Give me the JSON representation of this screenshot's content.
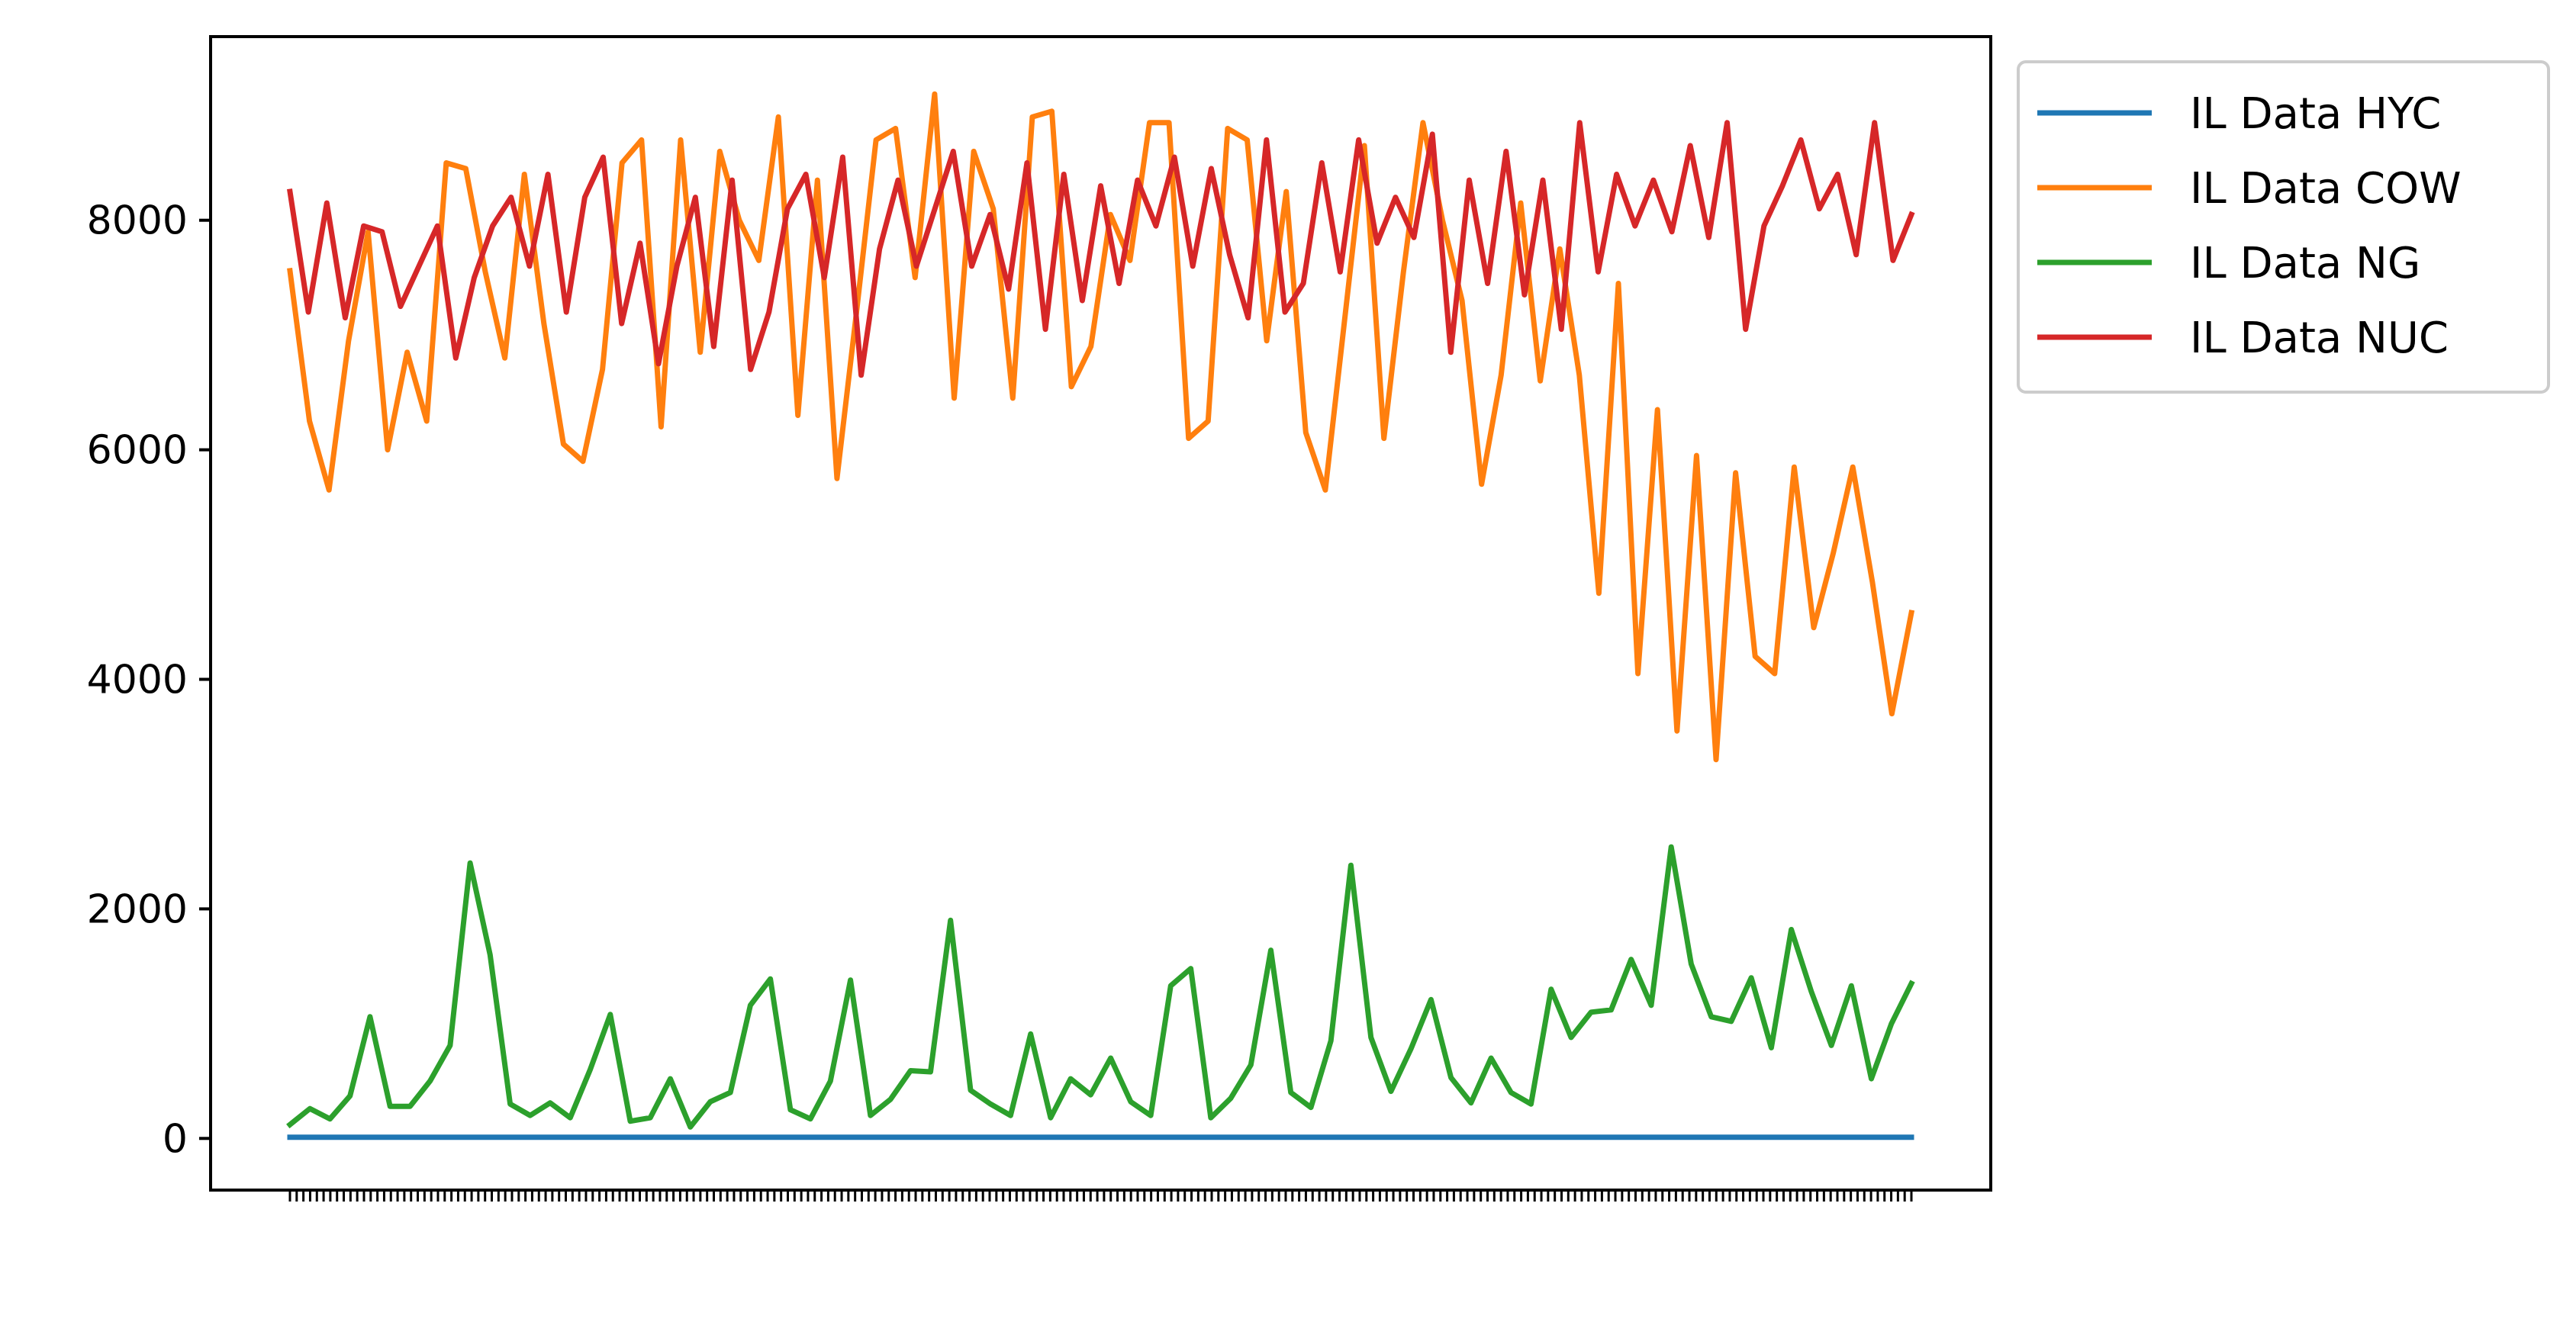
{
  "chart_data": {
    "type": "line",
    "title": "",
    "xlabel": "",
    "ylabel": "",
    "ylim": [
      -450,
      9600
    ],
    "yticks": [
      0,
      2000,
      4000,
      6000,
      8000
    ],
    "grid": false,
    "legend_placement": "outside-top-right",
    "x_tick_labels_overlapping": true,
    "x_count": 242,
    "series": [
      {
        "name": "IL Data HYC",
        "color": "#1f77b4",
        "values": [
          10,
          10,
          10,
          10,
          10,
          10
        ]
      },
      {
        "name": "IL Data COW",
        "color": "#ff7f0e",
        "values": [
          7560,
          6250,
          5650,
          6950,
          7900,
          6000,
          6850,
          6250,
          8500,
          8450,
          7550,
          6800,
          8400,
          7100,
          6050,
          5900,
          6700,
          8500,
          8700,
          6200,
          8700,
          6850,
          8600,
          8000,
          7650,
          8900,
          6300,
          8350,
          5750,
          7200,
          8700,
          8800,
          7500,
          9100,
          6450,
          8600,
          8100,
          6450,
          8900,
          8950,
          6550,
          6900,
          8050,
          7650,
          8850,
          8850,
          6100,
          6250,
          8800,
          8700,
          6950,
          8250,
          6150,
          5650,
          7150,
          8650,
          6100,
          7550,
          8850,
          8000,
          7300,
          5700,
          6650,
          8150,
          6600,
          7750,
          6650,
          4750,
          7450,
          4050,
          6350,
          3550,
          5950,
          3300,
          5800,
          4200,
          4050,
          5850,
          4450,
          5100,
          5850,
          4850,
          3700,
          4580
        ]
      },
      {
        "name": "IL Data NG",
        "color": "#2ca02c",
        "values": [
          120,
          260,
          170,
          370,
          1060,
          280,
          280,
          500,
          810,
          2400,
          1600,
          300,
          200,
          310,
          180,
          600,
          1080,
          150,
          180,
          520,
          100,
          320,
          400,
          1160,
          1390,
          250,
          170,
          500,
          1380,
          200,
          340,
          590,
          580,
          1900,
          420,
          300,
          200,
          910,
          180,
          520,
          380,
          700,
          320,
          200,
          1330,
          1480,
          180,
          350,
          640,
          1640,
          400,
          270,
          850,
          2380,
          880,
          410,
          780,
          1210,
          530,
          310,
          700,
          400,
          300,
          1300,
          880,
          1100,
          1120,
          1560,
          1160,
          2540,
          1520,
          1060,
          1020,
          1400,
          790,
          1820,
          1280,
          810,
          1330,
          520,
          1000,
          1350
        ]
      },
      {
        "name": "IL Data NUC",
        "color": "#d62728",
        "values": [
          8250,
          7200,
          8150,
          7150,
          7950,
          7900,
          7250,
          7600,
          7950,
          6800,
          7500,
          7950,
          8200,
          7600,
          8400,
          7200,
          8200,
          8550,
          7100,
          7800,
          6750,
          7600,
          8200,
          6900,
          8350,
          6700,
          7200,
          8100,
          8400,
          7500,
          8550,
          6650,
          7750,
          8350,
          7600,
          8100,
          8600,
          7600,
          8050,
          7400,
          8500,
          7050,
          8400,
          7300,
          8300,
          7450,
          8350,
          7950,
          8550,
          7600,
          8450,
          7700,
          7150,
          8700,
          7200,
          7450,
          8500,
          7550,
          8700,
          7800,
          8200,
          7850,
          8750,
          6850,
          8350,
          7450,
          8600,
          7350,
          8350,
          7050,
          8850,
          7550,
          8400,
          7950,
          8350,
          7900,
          8650,
          7850,
          8850,
          7050,
          7950,
          8300,
          8700,
          8100,
          8400,
          7700,
          8850,
          7650,
          8050
        ]
      }
    ]
  }
}
